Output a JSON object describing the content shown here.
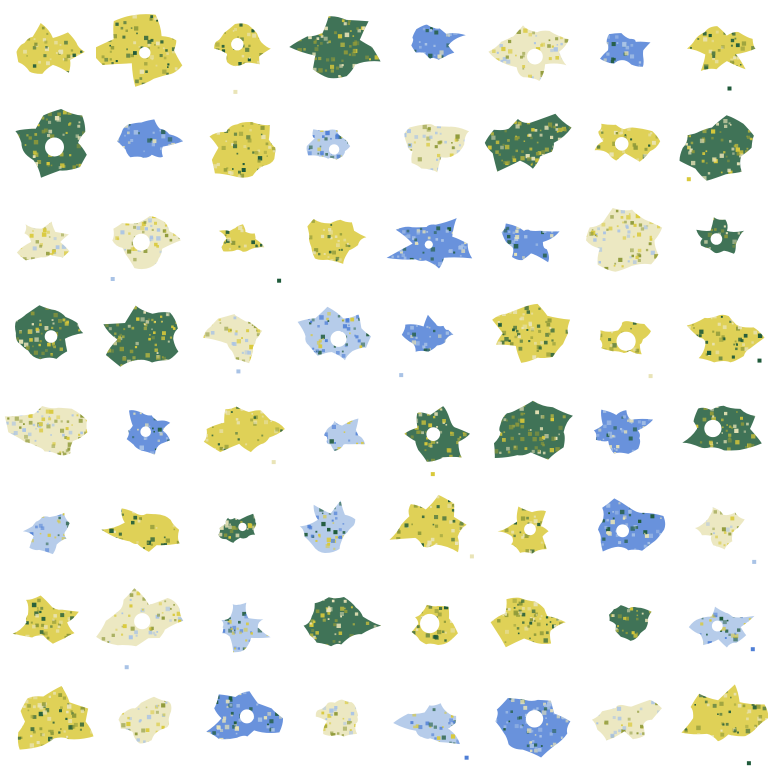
{
  "image": {
    "background": "#ffffff",
    "rows": 8,
    "cols": 8,
    "palette": {
      "yellow": "#d9c93a",
      "olive": "#8f9a3a",
      "dark_green": "#1f5a3a",
      "blue": "#4f7fd6",
      "light_blue": "#a9c3e6",
      "cream": "#e9e4b7"
    },
    "tiles": [
      {
        "kind": "yellow"
      },
      {
        "kind": "mixed-yellow"
      },
      {
        "kind": "yellow"
      },
      {
        "kind": "mixed-green"
      },
      {
        "kind": "blue"
      },
      {
        "kind": "pale"
      },
      {
        "kind": "blue"
      },
      {
        "kind": "mixed-yellow"
      },
      {
        "kind": "mixed-green"
      },
      {
        "kind": "blue"
      },
      {
        "kind": "mixed-yellow"
      },
      {
        "kind": "mixed-blue"
      },
      {
        "kind": "pale"
      },
      {
        "kind": "mixed-green"
      },
      {
        "kind": "yellow"
      },
      {
        "kind": "mixed-green"
      },
      {
        "kind": "pale"
      },
      {
        "kind": "pale"
      },
      {
        "kind": "mixed-yellow"
      },
      {
        "kind": "yellow"
      },
      {
        "kind": "blue"
      },
      {
        "kind": "blue"
      },
      {
        "kind": "pale"
      },
      {
        "kind": "mixed-green"
      },
      {
        "kind": "mixed-green"
      },
      {
        "kind": "mixed-green"
      },
      {
        "kind": "pale"
      },
      {
        "kind": "mixed-blue"
      },
      {
        "kind": "blue"
      },
      {
        "kind": "yellow"
      },
      {
        "kind": "yellow"
      },
      {
        "kind": "mixed-yellow"
      },
      {
        "kind": "pale"
      },
      {
        "kind": "blue"
      },
      {
        "kind": "yellow"
      },
      {
        "kind": "mixed-blue"
      },
      {
        "kind": "mixed-green"
      },
      {
        "kind": "mixed-green"
      },
      {
        "kind": "blue"
      },
      {
        "kind": "mixed-green"
      },
      {
        "kind": "mixed-blue"
      },
      {
        "kind": "mixed-yellow"
      },
      {
        "kind": "mixed-green"
      },
      {
        "kind": "mixed-blue"
      },
      {
        "kind": "yellow"
      },
      {
        "kind": "yellow"
      },
      {
        "kind": "blue"
      },
      {
        "kind": "pale"
      },
      {
        "kind": "yellow"
      },
      {
        "kind": "pale"
      },
      {
        "kind": "mixed-blue"
      },
      {
        "kind": "mixed-green"
      },
      {
        "kind": "mixed-yellow"
      },
      {
        "kind": "yellow"
      },
      {
        "kind": "mixed-green"
      },
      {
        "kind": "mixed-blue"
      },
      {
        "kind": "mixed-yellow"
      },
      {
        "kind": "pale"
      },
      {
        "kind": "blue"
      },
      {
        "kind": "pale"
      },
      {
        "kind": "mixed-blue"
      },
      {
        "kind": "blue"
      },
      {
        "kind": "pale"
      },
      {
        "kind": "mixed-yellow"
      }
    ]
  }
}
